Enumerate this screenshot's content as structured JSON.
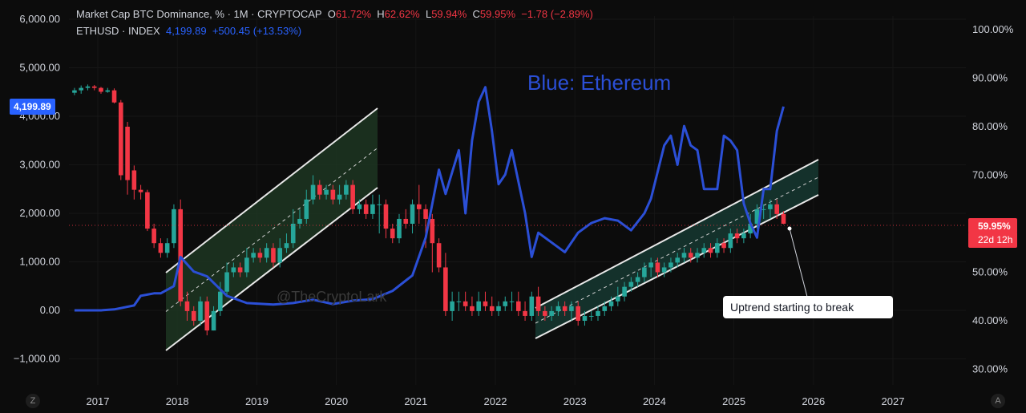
{
  "legend": {
    "line1": {
      "symbol": "Market Cap BTC Dominance, % · 1M · CRYPTOCAP",
      "o_label": "O",
      "o": "61.72%",
      "h_label": "H",
      "h": "62.62%",
      "l_label": "L",
      "l": "59.94%",
      "c_label": "C",
      "c": "59.95%",
      "change": "−1.78 (−2.89%)"
    },
    "line2": {
      "symbol": "ETHUSD · INDEX",
      "price": "4,199.89",
      "change": "+500.45 (+13.53%)"
    }
  },
  "badges": {
    "eth_price": "4,199.89",
    "btc_price": "59.95%",
    "countdown": "22d 12h"
  },
  "corner": {
    "left": "Z",
    "right": "A"
  },
  "colors": {
    "background": "#0c0c0c",
    "up": "#26a69a",
    "down": "#f23645",
    "eth_line": "#2b4fd6",
    "eth_badge": "#2962ff",
    "channel_fill": "#1f3b24",
    "channel_fill_2": "#173d36"
  },
  "chart_data": {
    "type": "line",
    "title": "",
    "annotations": [
      "Blue:  Ethereum",
      "Uptrend starting to break",
      "@TheCryptoLark"
    ],
    "x_ticks": [
      "2017",
      "2018",
      "2019",
      "2020",
      "2021",
      "2022",
      "2023",
      "2024",
      "2025",
      "2026",
      "2027"
    ],
    "left_axis": {
      "ticks": [
        "6,000.00",
        "5,000.00",
        "4,000.00",
        "3,000.00",
        "2,000.00",
        "1,000.00",
        "0.00",
        "−1,000.00"
      ],
      "range": [
        -1000,
        6000
      ]
    },
    "right_axis": {
      "ticks": [
        "100.00%",
        "90.00%",
        "80.00%",
        "70.00%",
        "60.00%",
        "50.00%",
        "40.00%",
        "30.00%"
      ],
      "range": [
        30,
        100
      ]
    },
    "series": [
      {
        "name": "ETHUSD · INDEX",
        "axis": "left",
        "x": [
          "2016-09",
          "2017-01",
          "2017-03",
          "2017-06",
          "2017-07",
          "2017-09",
          "2017-10",
          "2017-12",
          "2018-01",
          "2018-03",
          "2018-05",
          "2018-08",
          "2018-11",
          "2019-03",
          "2019-06",
          "2019-09",
          "2019-12",
          "2020-03",
          "2020-06",
          "2020-09",
          "2020-12",
          "2021-02",
          "2021-04",
          "2021-05",
          "2021-07",
          "2021-08",
          "2021-09",
          "2021-10",
          "2021-11",
          "2021-12",
          "2022-01",
          "2022-02",
          "2022-03",
          "2022-05",
          "2022-06",
          "2022-07",
          "2022-08",
          "2022-09",
          "2022-11",
          "2023-01",
          "2023-03",
          "2023-05",
          "2023-07",
          "2023-09",
          "2023-11",
          "2023-12",
          "2024-02",
          "2024-03",
          "2024-04",
          "2024-05",
          "2024-06",
          "2024-07",
          "2024-08",
          "2024-10",
          "2024-11",
          "2024-12",
          "2025-01",
          "2025-02",
          "2025-03",
          "2025-04",
          "2025-05",
          "2025-06",
          "2025-07",
          "2025-08"
        ],
        "values": [
          0,
          0,
          20,
          100,
          300,
          350,
          350,
          500,
          1100,
          800,
          700,
          300,
          150,
          120,
          150,
          220,
          130,
          200,
          230,
          400,
          720,
          1500,
          2900,
          2400,
          3300,
          2000,
          3500,
          4300,
          4600,
          3700,
          2600,
          2800,
          3300,
          2000,
          1100,
          1600,
          1500,
          1400,
          1200,
          1600,
          1800,
          1900,
          1850,
          1650,
          2000,
          2300,
          3400,
          3600,
          3000,
          3800,
          3400,
          3300,
          2500,
          2500,
          3600,
          3500,
          3300,
          2200,
          1800,
          1500,
          2500,
          2500,
          3700,
          4200
        ]
      },
      {
        "name": "Market Cap BTC Dominance, %",
        "axis": "right",
        "type": "candlestick",
        "x": [
          "2016-09",
          "2016-10",
          "2016-11",
          "2016-12",
          "2017-01",
          "2017-02",
          "2017-03",
          "2017-04",
          "2017-05",
          "2017-06",
          "2017-07",
          "2017-08",
          "2017-09",
          "2017-10",
          "2017-11",
          "2017-12",
          "2018-01",
          "2018-02",
          "2018-03",
          "2018-04",
          "2018-05",
          "2018-06",
          "2018-07",
          "2018-08",
          "2018-09",
          "2018-10",
          "2018-11",
          "2018-12",
          "2019-01",
          "2019-02",
          "2019-03",
          "2019-04",
          "2019-05",
          "2019-06",
          "2019-07",
          "2019-08",
          "2019-09",
          "2019-10",
          "2019-11",
          "2019-12",
          "2020-01",
          "2020-02",
          "2020-03",
          "2020-04",
          "2020-05",
          "2020-06",
          "2020-07",
          "2020-08",
          "2020-09",
          "2020-10",
          "2020-11",
          "2020-12",
          "2021-01",
          "2021-02",
          "2021-03",
          "2021-04",
          "2021-05",
          "2021-06",
          "2021-07",
          "2021-08",
          "2021-09",
          "2021-10",
          "2021-11",
          "2021-12",
          "2022-01",
          "2022-02",
          "2022-03",
          "2022-04",
          "2022-05",
          "2022-06",
          "2022-07",
          "2022-08",
          "2022-09",
          "2022-10",
          "2022-11",
          "2022-12",
          "2023-01",
          "2023-02",
          "2023-03",
          "2023-04",
          "2023-05",
          "2023-06",
          "2023-07",
          "2023-08",
          "2023-09",
          "2023-10",
          "2023-11",
          "2023-12",
          "2024-01",
          "2024-02",
          "2024-03",
          "2024-04",
          "2024-05",
          "2024-06",
          "2024-07",
          "2024-08",
          "2024-09",
          "2024-10",
          "2024-11",
          "2024-12",
          "2025-01",
          "2025-02",
          "2025-03",
          "2025-04",
          "2025-05",
          "2025-06",
          "2025-07",
          "2025-08"
        ],
        "open": [
          87,
          87.5,
          88,
          88.3,
          88,
          87.2,
          87.5,
          85,
          80,
          71,
          67,
          66.5,
          59,
          56,
          54,
          56,
          63,
          44,
          42,
          40,
          44,
          38,
          42,
          46,
          50,
          51,
          50,
          53,
          54,
          53,
          55,
          52,
          55,
          56,
          60,
          61,
          65,
          68,
          66,
          67,
          65,
          66,
          68,
          63,
          64,
          62,
          64,
          64,
          59,
          57,
          61,
          60,
          64,
          63,
          61,
          56,
          51,
          42,
          44,
          44,
          43,
          42,
          44,
          43,
          42,
          43,
          44,
          44,
          42,
          41,
          45,
          42,
          41,
          42,
          43,
          42,
          43,
          40,
          41,
          41,
          42,
          43,
          44,
          45,
          47,
          48,
          49,
          51,
          52,
          50,
          51,
          52,
          53,
          54,
          53,
          54,
          55,
          54,
          56,
          55,
          58,
          57,
          58,
          60,
          63,
          63,
          64,
          62
        ],
        "close": [
          87.5,
          88,
          88.3,
          88,
          87.2,
          87.5,
          85,
          70,
          69,
          67,
          66.5,
          59,
          56,
          54,
          56,
          63,
          44,
          42,
          40,
          44,
          38,
          42,
          46,
          50,
          51,
          50,
          53,
          54,
          53,
          55,
          52,
          55,
          56,
          60,
          61,
          65,
          68,
          66,
          67,
          65,
          66,
          68,
          63,
          64,
          62,
          64,
          64,
          59,
          57,
          61,
          60,
          64,
          63,
          61,
          56,
          51,
          42,
          44,
          44,
          43,
          42,
          44,
          43,
          42,
          43,
          44,
          44,
          42,
          41,
          45,
          42,
          41,
          42,
          43,
          42,
          43,
          40,
          41,
          41,
          42,
          43,
          44,
          45,
          47,
          48,
          49,
          51,
          52,
          50,
          51,
          52,
          53,
          54,
          53,
          54,
          55,
          54,
          56,
          55,
          58,
          57,
          58,
          60,
          63,
          63,
          64,
          62,
          60
        ],
        "high": [
          88,
          88.5,
          88.7,
          88.6,
          88.2,
          88,
          87.9,
          85.5,
          81,
          72,
          68,
          67,
          60,
          57,
          57,
          64,
          65,
          46,
          43,
          45,
          45,
          43,
          48,
          52,
          52,
          52,
          55,
          55,
          55,
          56,
          56,
          57,
          58,
          63,
          63,
          67,
          70,
          69,
          68,
          68,
          68,
          69,
          69,
          65,
          65,
          66,
          66,
          65,
          60,
          62,
          63,
          65,
          68,
          64,
          62,
          57,
          54,
          46,
          46,
          46,
          45,
          46,
          46,
          45,
          44,
          45,
          46,
          46,
          44,
          46,
          47,
          43,
          43,
          44,
          44,
          44,
          44,
          42,
          42,
          43,
          44,
          45,
          47,
          48,
          49,
          50,
          52,
          53,
          53,
          52,
          53,
          54,
          55,
          55,
          55,
          56,
          56,
          57,
          57,
          59,
          59,
          59,
          62,
          64,
          64,
          65,
          65,
          62.6
        ],
        "low": [
          86.5,
          86.8,
          87.5,
          87.5,
          86.8,
          87,
          84.8,
          69,
          66,
          65,
          65,
          58.5,
          55,
          53,
          53,
          55,
          43,
          40,
          39,
          39,
          37,
          38,
          41,
          45,
          49,
          49,
          49,
          52,
          52,
          52,
          51,
          51,
          54,
          55,
          59,
          60,
          64,
          65,
          65,
          64,
          64,
          65,
          62,
          62,
          61,
          61,
          58,
          57,
          56,
          56,
          59,
          58,
          60,
          55,
          50,
          50,
          41,
          40,
          42,
          42,
          41,
          41,
          42,
          41,
          41,
          42,
          42,
          41,
          40,
          40,
          41,
          40,
          40,
          41,
          41,
          40,
          39,
          39,
          40,
          40,
          41,
          42,
          43,
          44,
          46,
          47,
          48,
          49,
          49,
          49,
          50,
          51,
          52,
          52,
          52,
          53,
          53,
          53,
          54,
          54,
          56,
          56,
          57,
          59,
          61,
          61,
          61,
          59.9
        ]
      }
    ]
  }
}
